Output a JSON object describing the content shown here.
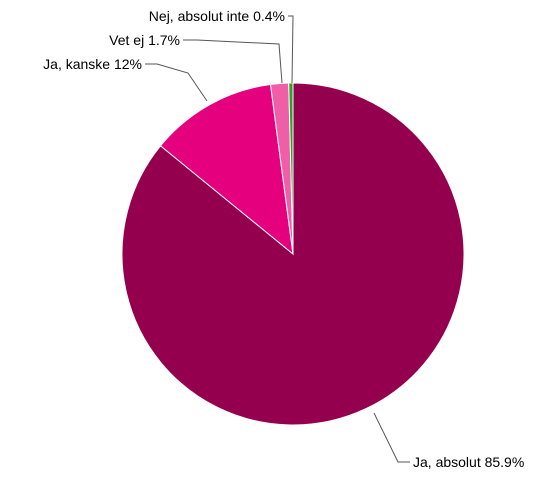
{
  "chart_data": {
    "type": "pie",
    "title": "",
    "start_angle_deg": 0,
    "direction": "clockwise",
    "slices": [
      {
        "label": "Ja, absolut",
        "value": 85.9,
        "value_text": "85.9%",
        "color": "#95004e"
      },
      {
        "label": "Ja, kanske",
        "value": 12,
        "value_text": "12%",
        "color": "#e5007d"
      },
      {
        "label": "Vet ej",
        "value": 1.7,
        "value_text": "1.7%",
        "color": "#ef5fa7"
      },
      {
        "label": "Nej, absolut inte",
        "value": 0.4,
        "value_text": "0.4%",
        "color": "#2ea02c"
      }
    ]
  }
}
